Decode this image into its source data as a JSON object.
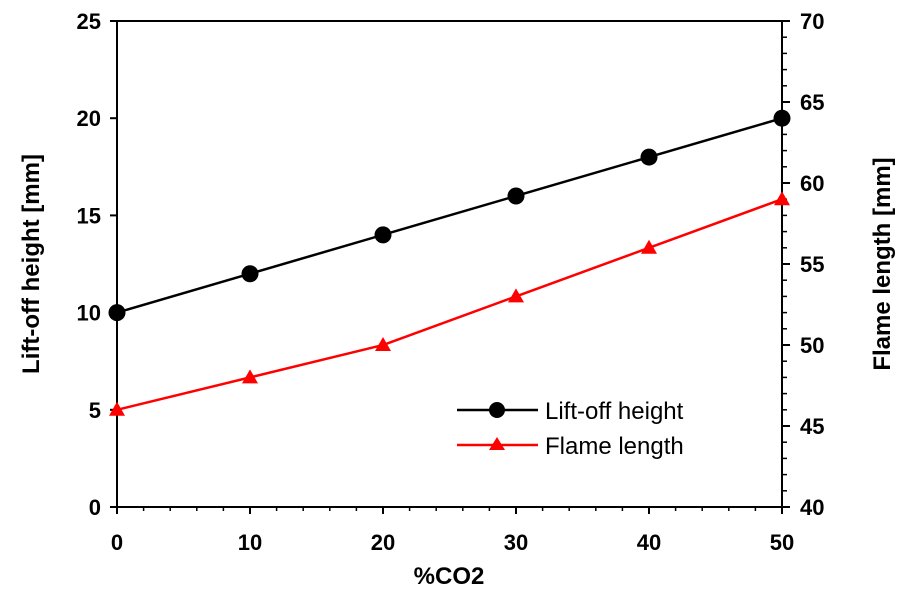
{
  "chart_data": {
    "type": "line",
    "x": [
      0,
      10,
      20,
      30,
      40,
      50
    ],
    "xlabel": "%CO2",
    "xlim": [
      0,
      50
    ],
    "xticks": [
      0,
      10,
      20,
      30,
      40,
      50
    ],
    "ylabel": "Lift-off height [mm]",
    "ylim": [
      0,
      25
    ],
    "yticks": [
      0,
      5,
      10,
      15,
      20,
      25
    ],
    "y2label": "Flame length [mm]",
    "y2lim": [
      40,
      70
    ],
    "y2ticks": [
      40,
      45,
      50,
      55,
      60,
      65,
      70
    ],
    "grid": false,
    "legend_position": "bottom-right",
    "series": [
      {
        "name": "Lift-off height",
        "axis": "left",
        "marker": "circle",
        "color": "#000000",
        "values": [
          10,
          12,
          14,
          16,
          18,
          20
        ]
      },
      {
        "name": "Flame length",
        "axis": "right",
        "marker": "triangle",
        "color": "#ff0000",
        "values": [
          46,
          48,
          50,
          53,
          56,
          59
        ]
      }
    ]
  }
}
